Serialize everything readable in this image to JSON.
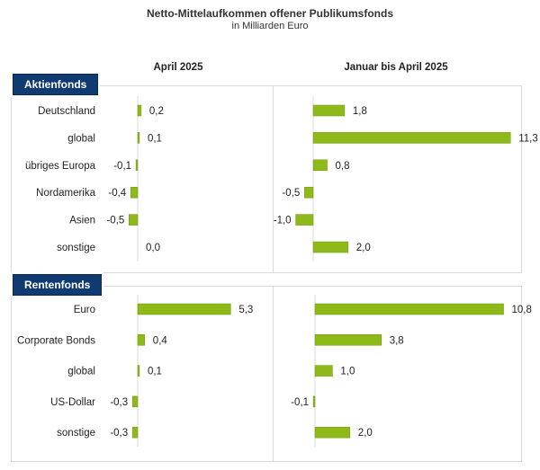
{
  "header": {
    "title": "Netto-Mittelaufkommen offener Publikumsfonds",
    "subtitle": "in Milliarden Euro"
  },
  "columns": {
    "left": "April 2025",
    "right": "Januar bis April 2025"
  },
  "colors": {
    "bar": "#8db919",
    "bar_edge": "#6f9414",
    "badge": "#0f3b72",
    "grid": "#d9d9d9"
  },
  "chart_data": [
    {
      "type": "bar",
      "orientation": "horizontal",
      "section": "Aktienfonds",
      "title": "April 2025",
      "categories": [
        "Deutschland",
        "global",
        "übriges Europa",
        "Nordamerika",
        "Asien",
        "sonstige"
      ],
      "values": [
        0.2,
        0.1,
        -0.1,
        -0.4,
        -0.5,
        0.0
      ],
      "value_labels": [
        "0,2",
        "0,1",
        "-0,1",
        "-0,4",
        "-0,5",
        "0,0"
      ]
    },
    {
      "type": "bar",
      "orientation": "horizontal",
      "section": "Aktienfonds",
      "title": "Januar bis April 2025",
      "categories": [
        "Deutschland",
        "global",
        "übriges Europa",
        "Nordamerika",
        "Asien",
        "sonstige"
      ],
      "values": [
        1.8,
        11.3,
        0.8,
        -0.5,
        -1.0,
        2.0
      ],
      "value_labels": [
        "1,8",
        "11,3",
        "0,8",
        "-0,5",
        "-1,0",
        "2,0"
      ]
    },
    {
      "type": "bar",
      "orientation": "horizontal",
      "section": "Rentenfonds",
      "title": "April 2025",
      "categories": [
        "Euro",
        "Corporate Bonds",
        "global",
        "US-Dollar",
        "sonstige"
      ],
      "values": [
        5.3,
        0.4,
        0.1,
        -0.3,
        -0.3
      ],
      "value_labels": [
        "5,3",
        "0,4",
        "0,1",
        "-0,3",
        "-0,3"
      ]
    },
    {
      "type": "bar",
      "orientation": "horizontal",
      "section": "Rentenfonds",
      "title": "Januar bis April 2025",
      "categories": [
        "Euro",
        "Corporate Bonds",
        "global",
        "US-Dollar",
        "sonstige"
      ],
      "values": [
        10.8,
        3.8,
        1.0,
        -0.1,
        2.0
      ],
      "value_labels": [
        "10,8",
        "3,8",
        "1,0",
        "-0,1",
        "2,0"
      ]
    }
  ]
}
